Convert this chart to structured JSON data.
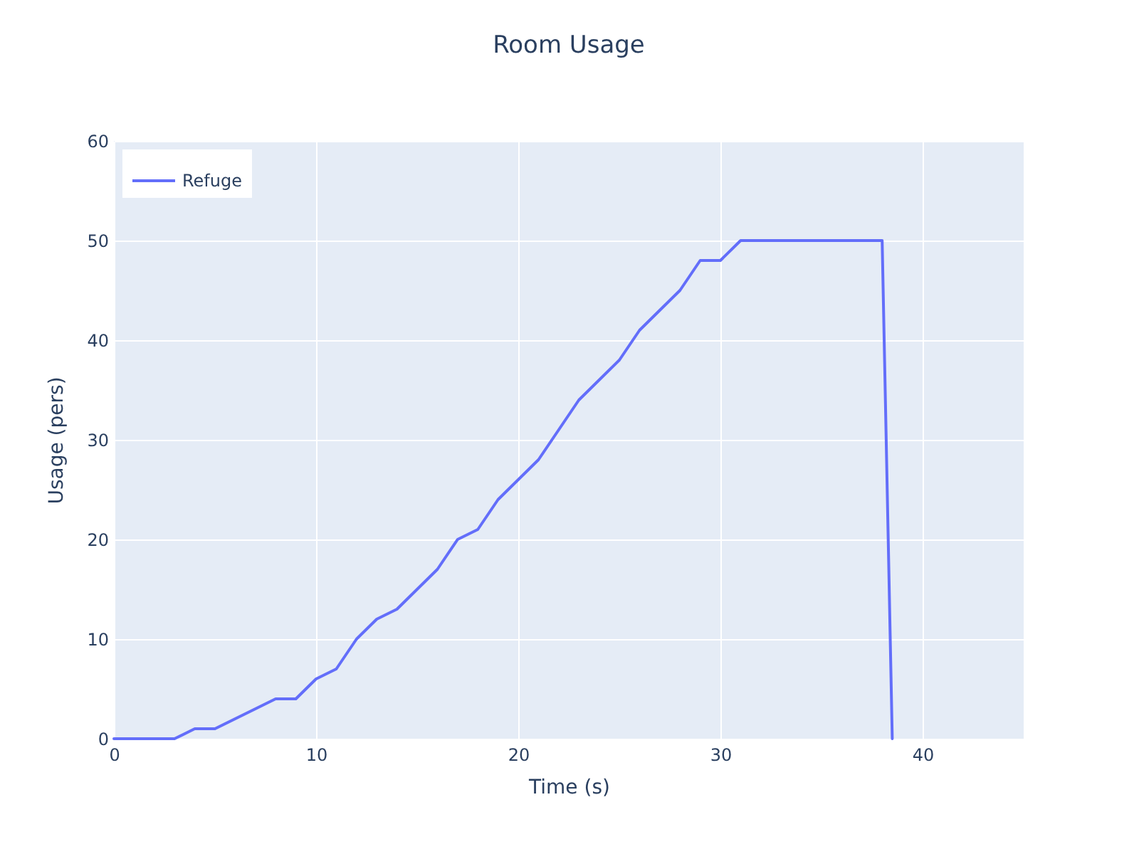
{
  "chart_data": {
    "type": "line",
    "title": "Room Usage",
    "xlabel": "Time (s)",
    "ylabel": "Usage (pers)",
    "x": [
      0,
      3,
      4,
      5,
      8,
      9,
      10,
      11,
      12,
      13,
      14,
      16,
      17,
      18,
      19,
      21,
      23,
      25,
      26,
      28,
      29,
      30,
      31,
      38,
      38.5
    ],
    "series": [
      {
        "name": "Refuge",
        "color": "#636efa",
        "values": [
          0,
          0,
          1,
          1,
          4,
          4,
          6,
          7,
          10,
          12,
          13,
          17,
          20,
          21,
          24,
          28,
          34,
          38,
          41,
          45,
          48,
          48,
          50,
          50,
          0
        ]
      }
    ],
    "xlim": [
      0,
      45
    ],
    "ylim": [
      0,
      60
    ],
    "xticks": [
      0,
      10,
      20,
      30,
      40
    ],
    "yticks": [
      0,
      10,
      20,
      30,
      40,
      50,
      60
    ],
    "grid": true,
    "legend": "top left",
    "marker": "none",
    "line_style": "solid"
  }
}
